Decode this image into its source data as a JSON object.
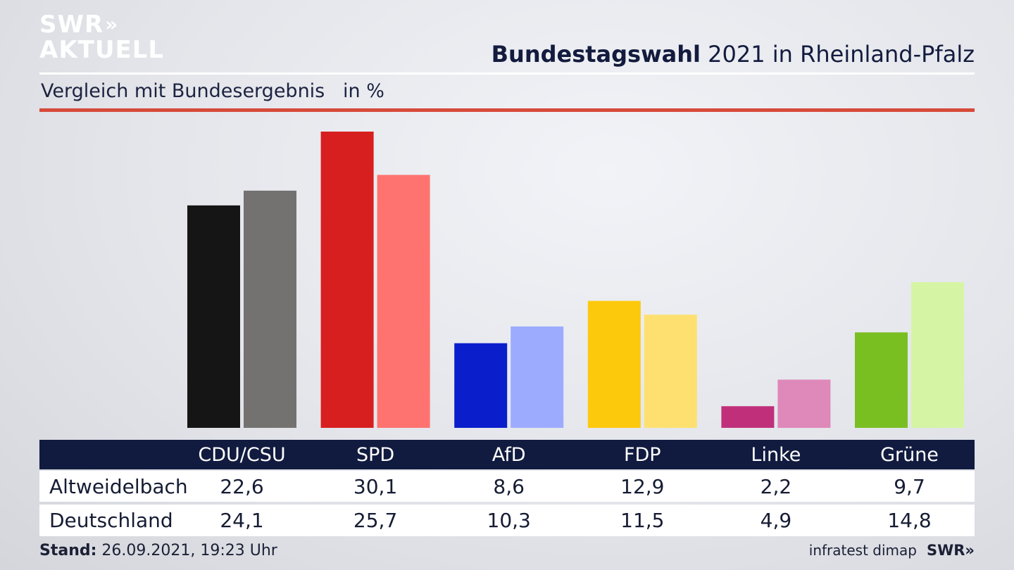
{
  "logo": {
    "line1": "SWR",
    "line2": "AKTUELL",
    "chevrons": "»"
  },
  "header": {
    "title_bold": "Bundestagswahl",
    "title_rest": " 2021 in Rheinland-Pfalz",
    "subtitle": "Vergleich mit Bundesergebnis   in %"
  },
  "chart_data": {
    "type": "bar",
    "categories": [
      "CDU/CSU",
      "SPD",
      "AfD",
      "FDP",
      "Linke",
      "Grüne"
    ],
    "series": [
      {
        "name": "Altweidelbach",
        "values": [
          22.6,
          30.1,
          8.6,
          12.9,
          2.2,
          9.7
        ]
      },
      {
        "name": "Deutschland",
        "values": [
          24.1,
          25.7,
          10.3,
          11.5,
          4.9,
          14.8
        ]
      }
    ],
    "ylim": [
      0,
      31.5
    ],
    "grid": false,
    "colors": {
      "Altweidelbach": [
        "#151515",
        "#d71f1f",
        "#0a1fcb",
        "#fdc90d",
        "#c0307a",
        "#7abf22"
      ],
      "Deutschland": [
        "#737270",
        "#fe7370",
        "#9dabff",
        "#fde070",
        "#df88ba",
        "#d5f5a5"
      ]
    }
  },
  "table": {
    "rows": [
      {
        "label": "Altweidelbach",
        "values": [
          "22,6",
          "30,1",
          "8,6",
          "12,9",
          "2,2",
          "9,7"
        ]
      },
      {
        "label": "Deutschland",
        "values": [
          "24,1",
          "25,7",
          "10,3",
          "11,5",
          "4,9",
          "14,8"
        ]
      }
    ]
  },
  "footer": {
    "stand_label": "Stand:",
    "stand_value": " 26.09.2021, 19:23 Uhr",
    "source": "infratest dimap",
    "brand": "SWR»"
  }
}
